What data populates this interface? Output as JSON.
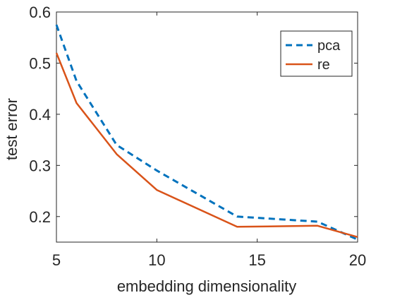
{
  "chart_data": {
    "type": "line",
    "title": "",
    "xlabel": "embedding dimensionality",
    "ylabel": "test error",
    "xlim": [
      5,
      20
    ],
    "ylim": [
      0.15,
      0.6
    ],
    "xticks": [
      "5",
      "10",
      "15",
      "20"
    ],
    "yticks": [
      "0.2",
      "0.3",
      "0.4",
      "0.5",
      "0.6"
    ],
    "grid": false,
    "legend_position": "top-right",
    "series": [
      {
        "name": "pca",
        "color": "#0072BD",
        "line_style": "dashed",
        "x": [
          5,
          6,
          8,
          10,
          14,
          18,
          20
        ],
        "y": [
          0.575,
          0.465,
          0.34,
          0.29,
          0.2,
          0.19,
          0.155
        ]
      },
      {
        "name": "re",
        "color": "#D95319",
        "line_style": "solid",
        "x": [
          5,
          6,
          8,
          10,
          14,
          18,
          20
        ],
        "y": [
          0.52,
          0.422,
          0.322,
          0.252,
          0.18,
          0.182,
          0.16
        ]
      }
    ]
  }
}
